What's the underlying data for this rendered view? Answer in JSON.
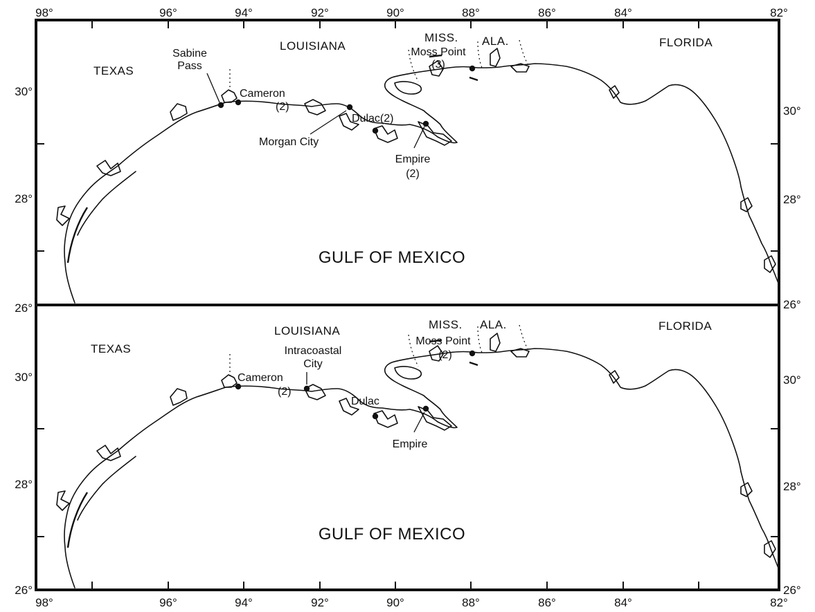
{
  "axis": {
    "top_longitudes": [
      "98°",
      "96°",
      "94°",
      "92°",
      "90°",
      "88°",
      "86°",
      "84°",
      "82°"
    ],
    "bottom_longitudes": [
      "98°",
      "96°",
      "94°",
      "92°",
      "90°",
      "88°",
      "86°",
      "84°",
      "82°"
    ],
    "top_panel_latitudes_left": [
      "30°",
      "28°",
      "26°"
    ],
    "top_panel_latitudes_right": [
      "30°",
      "28°",
      "26°"
    ],
    "bottom_panel_latitudes_left": [
      "30°",
      "28°",
      "26°"
    ],
    "bottom_panel_latitudes_right": [
      "30°",
      "28°",
      "26°"
    ]
  },
  "panels": [
    {
      "states": [
        {
          "text": "TEXAS"
        },
        {
          "text": "LOUISIANA"
        },
        {
          "text": "MISS."
        },
        {
          "text": "ALA."
        },
        {
          "text": "FLORIDA"
        }
      ],
      "water": {
        "text": "GULF OF MEXICO"
      },
      "sites": [
        {
          "lines": [
            "Sabine",
            "Pass"
          ]
        },
        {
          "lines": [
            "Cameron",
            "(2)"
          ]
        },
        {
          "lines": [
            "Morgan City"
          ]
        },
        {
          "lines": [
            "Dulac(2)"
          ]
        },
        {
          "lines": [
            "Empire",
            "(2)"
          ]
        },
        {
          "lines": [
            "Moss Point",
            "(3)"
          ]
        }
      ]
    },
    {
      "states": [
        {
          "text": "TEXAS"
        },
        {
          "text": "LOUISIANA"
        },
        {
          "text": "MISS."
        },
        {
          "text": "ALA."
        },
        {
          "text": "FLORIDA"
        }
      ],
      "water": {
        "text": "GULF OF MEXICO"
      },
      "sites": [
        {
          "lines": [
            "Cameron",
            "(2)"
          ]
        },
        {
          "lines": [
            "Intracoastal",
            "City"
          ]
        },
        {
          "lines": [
            "Dulac"
          ]
        },
        {
          "lines": [
            "Empire"
          ]
        },
        {
          "lines": [
            "Moss Point",
            "(2)"
          ]
        }
      ]
    }
  ]
}
